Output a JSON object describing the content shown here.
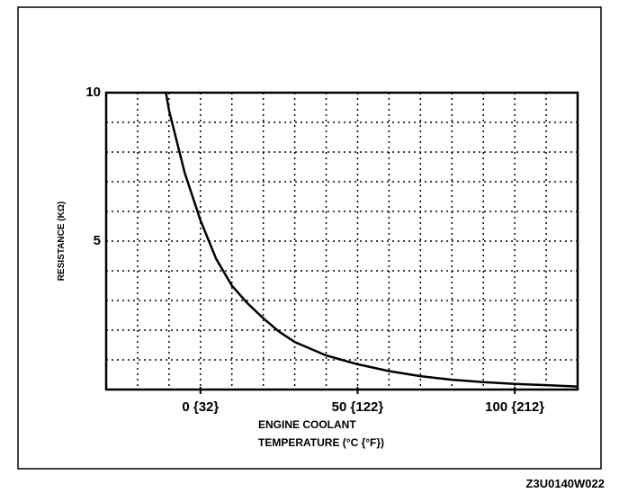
{
  "chart_data": {
    "type": "line",
    "title": "",
    "xlabel_line1": "ENGINE COOLANT",
    "xlabel_line2": "TEMPERATURE (°C {°F})",
    "ylabel": "RESISTANCE (KΩ)",
    "xlim": [
      -30,
      120
    ],
    "ylim": [
      0,
      10
    ],
    "x_ticks": [
      {
        "value": 0,
        "label": "0 {32}"
      },
      {
        "value": 50,
        "label": "50 {122}"
      },
      {
        "value": 100,
        "label": "100 {212}"
      }
    ],
    "y_ticks": [
      {
        "value": 10,
        "label": "10"
      },
      {
        "value": 5,
        "label": "5"
      }
    ],
    "grid": true,
    "grid_step_x": 10,
    "grid_step_y": 1,
    "series": [
      {
        "name": "resistance",
        "x": [
          -11,
          -10,
          -5,
          0,
          5,
          10,
          15,
          20,
          25,
          30,
          40,
          50,
          60,
          70,
          80,
          90,
          100,
          110,
          120
        ],
        "y": [
          10,
          9.4,
          7.3,
          5.7,
          4.4,
          3.5,
          2.9,
          2.4,
          1.95,
          1.6,
          1.15,
          0.85,
          0.62,
          0.45,
          0.33,
          0.25,
          0.19,
          0.15,
          0.1
        ]
      }
    ]
  },
  "figure_code": "Z3U0140W022",
  "colors": {
    "line": "#000000",
    "background": "#ffffff"
  }
}
